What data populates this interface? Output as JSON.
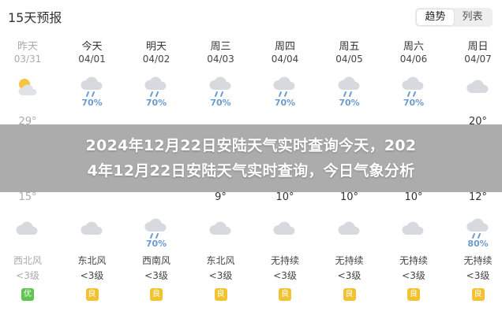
{
  "header": {
    "title": "15天预报",
    "tabs": [
      "趋势",
      "列表"
    ],
    "active_tab": 0
  },
  "banner": {
    "line1": "2024年12月22日安陆天气实时查询今天，202",
    "line2": "4年12月22日安陆天气实时查询，今日气象分析"
  },
  "days": [
    {
      "name": "昨天",
      "date": "03/31",
      "icon_top": "sun-cloud-icon",
      "precip_top": "",
      "high": "29°",
      "low": "15°",
      "icon_bot": "cloud-icon",
      "precip_bot": "",
      "wind": "西北风",
      "level": "<3级",
      "aqi": "优",
      "aqi_class": "good",
      "past": true
    },
    {
      "name": "今天",
      "date": "04/01",
      "icon_top": "rain-cloud-icon",
      "precip_top": "70%",
      "high": "",
      "low": "",
      "icon_bot": "cloud-icon",
      "precip_bot": "",
      "wind": "东北风",
      "level": "<3级",
      "aqi": "良",
      "aqi_class": "fair",
      "past": false
    },
    {
      "name": "明天",
      "date": "04/02",
      "icon_top": "rain-cloud-icon",
      "precip_top": "70%",
      "high": "",
      "low": "",
      "icon_bot": "rain-cloud-icon",
      "precip_bot": "70%",
      "wind": "西南风",
      "level": "<3级",
      "aqi": "良",
      "aqi_class": "fair",
      "past": false
    },
    {
      "name": "周三",
      "date": "04/03",
      "icon_top": "rain-cloud-icon",
      "precip_top": "70%",
      "high": "",
      "low": "9°",
      "icon_bot": "cloud-icon",
      "precip_bot": "",
      "wind": "东北风",
      "level": "<3级",
      "aqi": "良",
      "aqi_class": "fair",
      "past": false
    },
    {
      "name": "周四",
      "date": "04/04",
      "icon_top": "rain-cloud-icon",
      "precip_top": "70%",
      "high": "",
      "low": "10°",
      "icon_bot": "cloud-icon",
      "precip_bot": "",
      "wind": "无持续",
      "level": "<3级",
      "aqi": "良",
      "aqi_class": "fair",
      "past": false
    },
    {
      "name": "周五",
      "date": "04/05",
      "icon_top": "rain-cloud-icon",
      "precip_top": "70%",
      "high": "",
      "low": "10°",
      "icon_bot": "cloud-icon",
      "precip_bot": "",
      "wind": "无持续",
      "level": "<3级",
      "aqi": "良",
      "aqi_class": "fair",
      "past": false
    },
    {
      "name": "周六",
      "date": "04/06",
      "icon_top": "rain-cloud-icon",
      "precip_top": "70%",
      "high": "",
      "low": "10°",
      "icon_bot": "cloud-icon",
      "precip_bot": "",
      "wind": "无持续",
      "level": "<3级",
      "aqi": "良",
      "aqi_class": "fair",
      "past": false
    },
    {
      "name": "周日",
      "date": "04/07",
      "icon_top": "cloud-icon",
      "precip_top": "",
      "high": "20°",
      "low": "12°",
      "icon_bot": "rain-cloud-icon",
      "precip_bot": "80%",
      "wind": "无持续",
      "level": "<3级",
      "aqi": "良",
      "aqi_class": "fair",
      "past": false
    }
  ]
}
